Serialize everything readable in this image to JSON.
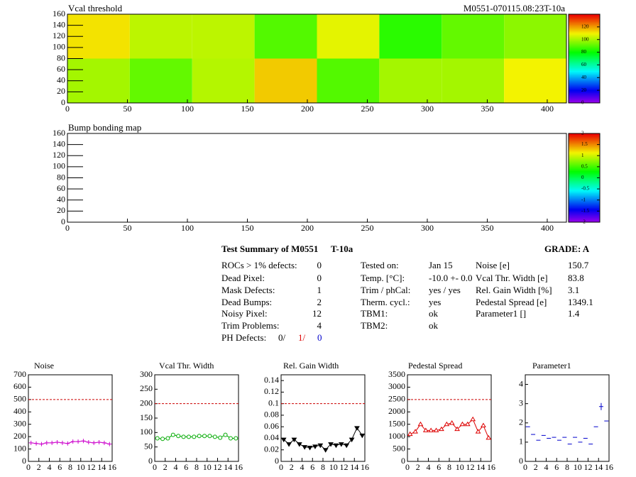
{
  "chart_data": [
    {
      "type": "heatmap",
      "title": "Vcal threshold",
      "label": "M0551-070115.08:23T-10a",
      "xlim": [
        0,
        416
      ],
      "xticks": [
        0,
        50,
        100,
        150,
        200,
        250,
        300,
        350,
        400
      ],
      "ylim": [
        0,
        160
      ],
      "yticks": [
        0,
        20,
        40,
        60,
        80,
        100,
        120,
        140,
        160
      ],
      "zlim": [
        0,
        140
      ],
      "zticks": [
        0,
        20,
        40,
        60,
        80,
        100,
        120
      ],
      "z": [
        [
          100,
          92,
          102,
          115,
          90,
          100,
          100,
          110
        ],
        [
          112,
          103,
          103,
          90,
          108,
          85,
          92,
          97
        ]
      ]
    },
    {
      "type": "heatmap",
      "title": "Bump bonding map",
      "xlim": [
        0,
        416
      ],
      "xticks": [
        0,
        50,
        100,
        150,
        200,
        250,
        300,
        350,
        400
      ],
      "ylim": [
        0,
        160
      ],
      "yticks": [
        0,
        20,
        40,
        60,
        80,
        100,
        120,
        140,
        160
      ],
      "zlim": [
        -2,
        2
      ],
      "zticks": [
        -2,
        -1.5,
        -1,
        -0.5,
        0,
        0.5,
        1,
        1.5,
        2
      ]
    },
    {
      "type": "line",
      "title": "Noise",
      "marker": "cross",
      "color": "#cc00cc",
      "line": true,
      "x": [
        0.5,
        1.5,
        2.5,
        3.5,
        4.5,
        5.5,
        6.5,
        7.5,
        8.5,
        9.5,
        10.5,
        11.5,
        12.5,
        13.5,
        14.5,
        15.5
      ],
      "values": [
        150,
        145,
        140,
        150,
        150,
        155,
        150,
        145,
        160,
        160,
        165,
        155,
        150,
        155,
        150,
        140
      ],
      "limit": 500,
      "xlim": [
        0,
        16
      ],
      "xticks": [
        0,
        2,
        4,
        6,
        8,
        10,
        12,
        14,
        16
      ],
      "ylim": [
        0,
        700
      ],
      "yticks": [
        0,
        100,
        200,
        300,
        400,
        500,
        600,
        700
      ]
    },
    {
      "type": "line",
      "title": "Vcal Thr. Width",
      "marker": "circle",
      "color": "#00aa00",
      "line": true,
      "x": [
        0.5,
        1.5,
        2.5,
        3.5,
        4.5,
        5.5,
        6.5,
        7.5,
        8.5,
        9.5,
        10.5,
        11.5,
        12.5,
        13.5,
        14.5,
        15.5
      ],
      "values": [
        80,
        78,
        80,
        92,
        88,
        85,
        85,
        85,
        88,
        88,
        88,
        85,
        82,
        92,
        80,
        80
      ],
      "limit": 200,
      "xlim": [
        0,
        16
      ],
      "xticks": [
        0,
        2,
        4,
        6,
        8,
        10,
        12,
        14,
        16
      ],
      "ylim": [
        0,
        300
      ],
      "yticks": [
        0,
        50,
        100,
        150,
        200,
        250,
        300
      ]
    },
    {
      "type": "line",
      "title": "Rel. Gain Width",
      "marker": "triangle-down",
      "color": "#000000",
      "line": true,
      "x": [
        0.5,
        1.5,
        2.5,
        3.5,
        4.5,
        5.5,
        6.5,
        7.5,
        8.5,
        9.5,
        10.5,
        11.5,
        12.5,
        13.5,
        14.5,
        15.5
      ],
      "values": [
        0.038,
        0.03,
        0.038,
        0.03,
        0.025,
        0.024,
        0.026,
        0.028,
        0.02,
        0.03,
        0.028,
        0.03,
        0.028,
        0.038,
        0.058,
        0.045
      ],
      "limit": 0.1,
      "xlim": [
        0,
        16
      ],
      "xticks": [
        0,
        2,
        4,
        6,
        8,
        10,
        12,
        14,
        16
      ],
      "ylim": [
        0,
        0.15
      ],
      "yticks": [
        0,
        0.02,
        0.04,
        0.06,
        0.08,
        0.1,
        0.12,
        0.14
      ]
    },
    {
      "type": "line",
      "title": "Pedestal Spread",
      "marker": "triangle-up",
      "color": "#dd0000",
      "line": true,
      "x": [
        0.5,
        1.5,
        2.5,
        3.5,
        4.5,
        5.5,
        6.5,
        7.5,
        8.5,
        9.5,
        10.5,
        11.5,
        12.5,
        13.5,
        14.5,
        15.5
      ],
      "values": [
        1100,
        1200,
        1500,
        1250,
        1250,
        1250,
        1300,
        1500,
        1550,
        1300,
        1500,
        1500,
        1700,
        1200,
        1450,
        950
      ],
      "limit": 2500,
      "xlim": [
        0,
        16
      ],
      "xticks": [
        0,
        2,
        4,
        6,
        8,
        10,
        12,
        14,
        16
      ],
      "ylim": [
        0,
        3500
      ],
      "yticks": [
        0,
        500,
        1000,
        1500,
        2000,
        2500,
        3000,
        3500
      ]
    },
    {
      "type": "scatter",
      "title": "Parameter1",
      "marker": "hline",
      "color": "#0000cc",
      "line": false,
      "x": [
        0.5,
        1.5,
        2.5,
        3.5,
        4.5,
        5.5,
        6.5,
        7.5,
        8.5,
        9.5,
        10.5,
        11.5,
        12.5,
        13.5,
        14.5,
        15.5
      ],
      "values": [
        1.8,
        1.4,
        1.1,
        1.35,
        1.2,
        1.25,
        1.1,
        1.25,
        0.9,
        1.25,
        1.0,
        1.2,
        0.9,
        1.8,
        2.85,
        2.1
      ],
      "xlim": [
        0,
        16
      ],
      "xticks": [
        0,
        2,
        4,
        6,
        8,
        10,
        12,
        14,
        16
      ],
      "ylim": [
        0,
        4.5
      ],
      "yticks": [
        0,
        1,
        2,
        3,
        4
      ]
    }
  ],
  "summary": {
    "title": "Test Summary of M0551",
    "tag": "T-10a",
    "grade": "GRADE:  A",
    "left": [
      [
        "ROCs > 1% defects:",
        "0"
      ],
      [
        "Dead Pixel:",
        "0"
      ],
      [
        "Mask Defects:",
        "1"
      ],
      [
        "Dead Bumps:",
        "2"
      ],
      [
        "Noisy Pixel:",
        "12"
      ],
      [
        "Trim Problems:",
        "4"
      ]
    ],
    "ph": {
      "label": "PH Defects:",
      "values": [
        "0/",
        "1/",
        "0"
      ]
    },
    "middle": [
      [
        "Tested on:",
        "Jan 15"
      ],
      [
        "Temp. [°C]:",
        "-10.0 +- 0.0"
      ],
      [
        "Trim / phCal:",
        "yes / yes"
      ],
      [
        "Therm. cycl.:",
        "yes"
      ],
      [
        "TBM1:",
        "ok"
      ],
      [
        "TBM2:",
        "ok"
      ]
    ],
    "right": [
      [
        "Noise [e]",
        "150.7"
      ],
      [
        "Vcal Thr. Width [e]",
        "83.8"
      ],
      [
        "Rel. Gain Width [%]",
        "3.1"
      ],
      [
        "Pedestal Spread [e]",
        "1349.1"
      ],
      [
        "Parameter1 []",
        "1.4"
      ]
    ]
  }
}
